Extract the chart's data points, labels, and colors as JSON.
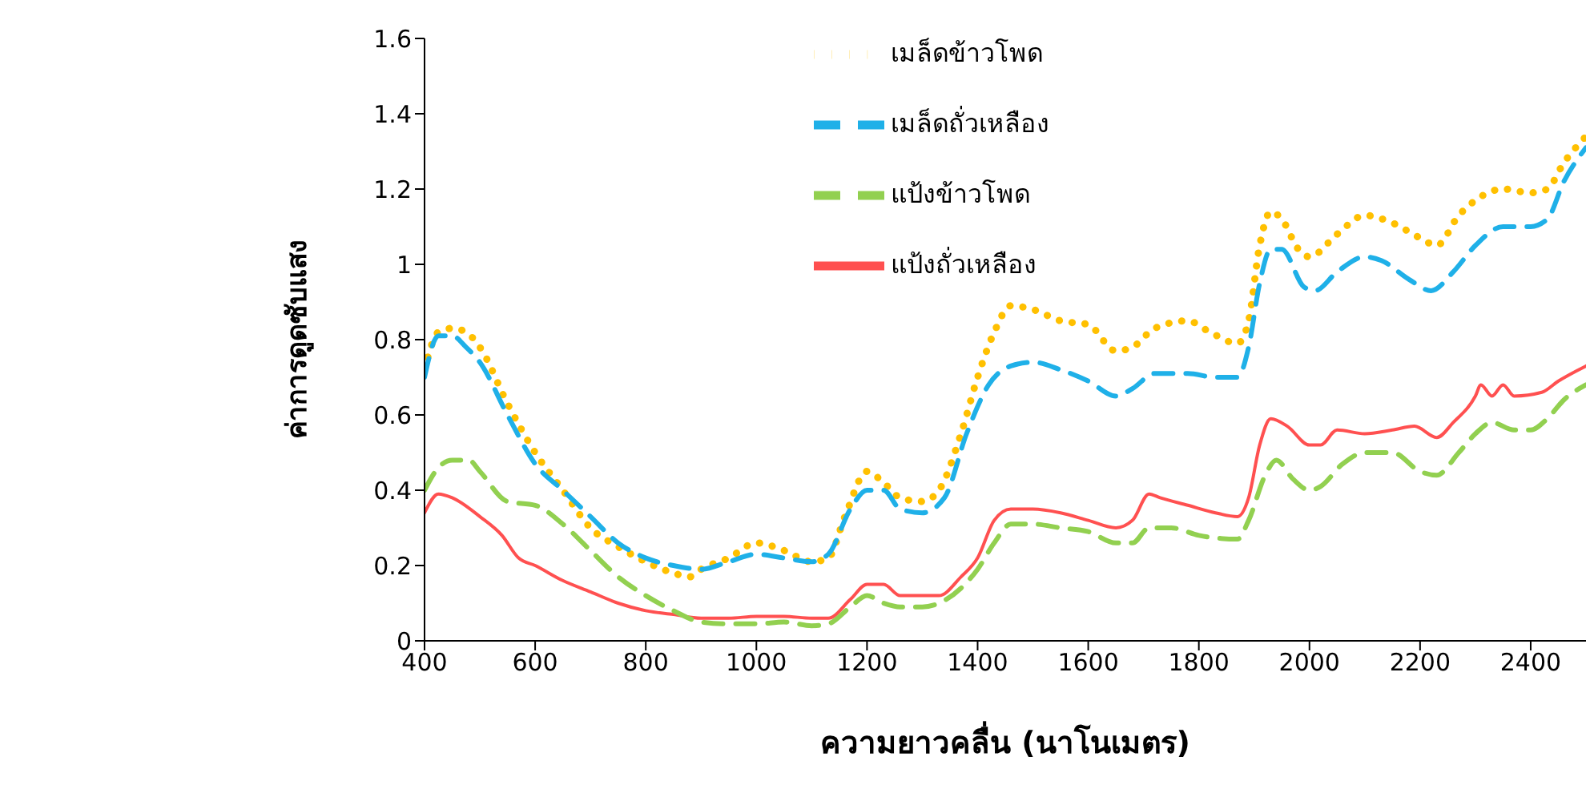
{
  "chart_data": {
    "type": "line",
    "xlabel": "ความยาวคลื่น (นาโนเมตร)",
    "ylabel": "ค่าการดูดซับแสง",
    "xlim": [
      400,
      2500
    ],
    "xticks": [
      400,
      600,
      800,
      1000,
      1200,
      1400,
      1600,
      1800,
      2000,
      2200,
      2400
    ],
    "ylim": [
      0,
      1.6
    ],
    "yticks": [
      0,
      0.2,
      0.4,
      0.6,
      0.8,
      1,
      1.2,
      1.4,
      1.6
    ],
    "grid": false,
    "legend": "top",
    "marker": "none",
    "series": [
      {
        "name": "เมล็ดข้าวโพด",
        "color": "#ffc000",
        "line_style": "dotted",
        "x": [
          400,
          425,
          450,
          475,
          500,
          550,
          600,
          650,
          700,
          750,
          800,
          850,
          880,
          900,
          950,
          1000,
          1050,
          1100,
          1130,
          1160,
          1200,
          1230,
          1260,
          1300,
          1330,
          1370,
          1400,
          1430,
          1460,
          1500,
          1550,
          1600,
          1650,
          1680,
          1720,
          1780,
          1820,
          1870,
          1890,
          1910,
          1930,
          1950,
          1980,
          2000,
          2050,
          2100,
          2150,
          2200,
          2230,
          2270,
          2300,
          2350,
          2400,
          2430,
          2460,
          2500
        ],
        "values": [
          0.72,
          0.82,
          0.83,
          0.82,
          0.78,
          0.63,
          0.5,
          0.4,
          0.3,
          0.25,
          0.21,
          0.18,
          0.17,
          0.19,
          0.22,
          0.26,
          0.24,
          0.21,
          0.22,
          0.33,
          0.45,
          0.42,
          0.38,
          0.37,
          0.4,
          0.55,
          0.7,
          0.82,
          0.89,
          0.88,
          0.85,
          0.84,
          0.77,
          0.78,
          0.83,
          0.85,
          0.82,
          0.79,
          0.85,
          1.05,
          1.14,
          1.12,
          1.04,
          1.02,
          1.08,
          1.13,
          1.11,
          1.07,
          1.05,
          1.13,
          1.17,
          1.2,
          1.19,
          1.2,
          1.27,
          1.34
        ]
      },
      {
        "name": "เมล็ดถั่วเหลือง",
        "color": "#1fb0e8",
        "line_style": "dashed",
        "x": [
          400,
          425,
          450,
          475,
          500,
          550,
          600,
          650,
          700,
          750,
          800,
          850,
          900,
          950,
          1000,
          1050,
          1100,
          1130,
          1170,
          1200,
          1230,
          1260,
          1300,
          1340,
          1380,
          1420,
          1460,
          1500,
          1550,
          1600,
          1650,
          1680,
          1720,
          1780,
          1830,
          1870,
          1890,
          1910,
          1930,
          1950,
          1990,
          2010,
          2050,
          2100,
          2130,
          2180,
          2220,
          2260,
          2300,
          2350,
          2400,
          2430,
          2460,
          2500
        ],
        "values": [
          0.7,
          0.81,
          0.81,
          0.78,
          0.74,
          0.6,
          0.47,
          0.4,
          0.33,
          0.26,
          0.22,
          0.2,
          0.19,
          0.21,
          0.23,
          0.22,
          0.21,
          0.23,
          0.35,
          0.4,
          0.4,
          0.35,
          0.34,
          0.38,
          0.55,
          0.68,
          0.73,
          0.74,
          0.72,
          0.69,
          0.65,
          0.67,
          0.71,
          0.71,
          0.7,
          0.7,
          0.78,
          0.95,
          1.04,
          1.04,
          0.94,
          0.93,
          0.98,
          1.02,
          1.01,
          0.96,
          0.93,
          0.98,
          1.05,
          1.1,
          1.1,
          1.12,
          1.22,
          1.31
        ]
      },
      {
        "name": "แป้งถั่วเหลือง",
        "color": "#ff5050",
        "line_style": "solid",
        "x": [
          400,
          425,
          450,
          500,
          540,
          570,
          600,
          650,
          700,
          750,
          800,
          850,
          900,
          950,
          1000,
          1050,
          1100,
          1130,
          1170,
          1200,
          1230,
          1260,
          1300,
          1330,
          1370,
          1400,
          1430,
          1460,
          1500,
          1550,
          1600,
          1650,
          1680,
          1710,
          1730,
          1780,
          1830,
          1870,
          1890,
          1910,
          1930,
          1960,
          2000,
          2020,
          2050,
          2100,
          2150,
          2190,
          2230,
          2260,
          2300,
          2310,
          2330,
          2350,
          2370,
          2420,
          2450,
          2500
        ],
        "values": [
          0.34,
          0.39,
          0.38,
          0.33,
          0.28,
          0.22,
          0.2,
          0.16,
          0.13,
          0.1,
          0.08,
          0.07,
          0.06,
          0.06,
          0.065,
          0.065,
          0.06,
          0.06,
          0.11,
          0.15,
          0.15,
          0.12,
          0.12,
          0.12,
          0.17,
          0.22,
          0.32,
          0.35,
          0.35,
          0.34,
          0.32,
          0.3,
          0.32,
          0.39,
          0.38,
          0.36,
          0.34,
          0.33,
          0.38,
          0.52,
          0.59,
          0.57,
          0.52,
          0.52,
          0.56,
          0.55,
          0.56,
          0.57,
          0.54,
          0.58,
          0.65,
          0.68,
          0.65,
          0.68,
          0.65,
          0.66,
          0.69,
          0.73
        ]
      },
      {
        "name": "แป้งข้าวโพด",
        "color": "#92d050",
        "line_style": "dashed",
        "x": [
          400,
          425,
          450,
          480,
          500,
          550,
          600,
          650,
          700,
          750,
          800,
          850,
          900,
          950,
          1000,
          1050,
          1100,
          1130,
          1170,
          1200,
          1230,
          1260,
          1300,
          1330,
          1370,
          1400,
          1430,
          1460,
          1500,
          1550,
          1600,
          1650,
          1680,
          1710,
          1750,
          1800,
          1870,
          1890,
          1920,
          1940,
          1970,
          2000,
          2020,
          2060,
          2100,
          2150,
          2200,
          2230,
          2270,
          2300,
          2330,
          2370,
          2400,
          2430,
          2460,
          2500
        ],
        "values": [
          0.4,
          0.46,
          0.48,
          0.48,
          0.45,
          0.37,
          0.36,
          0.31,
          0.24,
          0.17,
          0.12,
          0.08,
          0.05,
          0.045,
          0.045,
          0.05,
          0.04,
          0.045,
          0.09,
          0.12,
          0.1,
          0.09,
          0.09,
          0.1,
          0.14,
          0.19,
          0.26,
          0.31,
          0.31,
          0.3,
          0.29,
          0.26,
          0.26,
          0.3,
          0.3,
          0.28,
          0.27,
          0.32,
          0.44,
          0.48,
          0.43,
          0.4,
          0.41,
          0.47,
          0.5,
          0.5,
          0.45,
          0.44,
          0.5,
          0.55,
          0.58,
          0.56,
          0.56,
          0.59,
          0.64,
          0.68
        ]
      }
    ]
  }
}
